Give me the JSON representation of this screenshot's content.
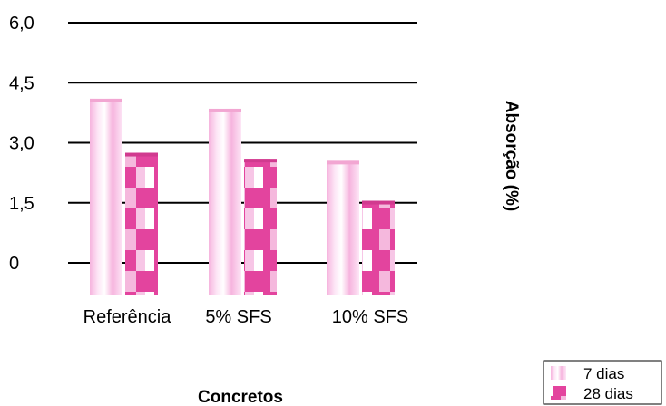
{
  "chart_data": {
    "type": "bar",
    "categories": [
      "Referência",
      "5% SFS",
      "10% SFS"
    ],
    "series": [
      {
        "name": "7 dias",
        "values": [
          4.1,
          3.85,
          2.55
        ]
      },
      {
        "name": "28 dias",
        "values": [
          2.75,
          2.6,
          1.55
        ]
      }
    ],
    "xlabel": "Concretos",
    "ylabel": "Absorção (%)",
    "ylim": [
      0,
      6.0
    ],
    "yticks": [
      "0",
      "1,5",
      "3,0",
      "4,5",
      "6,0"
    ],
    "grid": true,
    "legend_position": "bottom-right"
  },
  "colors": {
    "series_7_light": "#fde6f6",
    "series_7_mid": "#f6b4de",
    "series_28_light": "#ffffff",
    "series_28_mid": "#e3449e",
    "grid": "#000000"
  }
}
